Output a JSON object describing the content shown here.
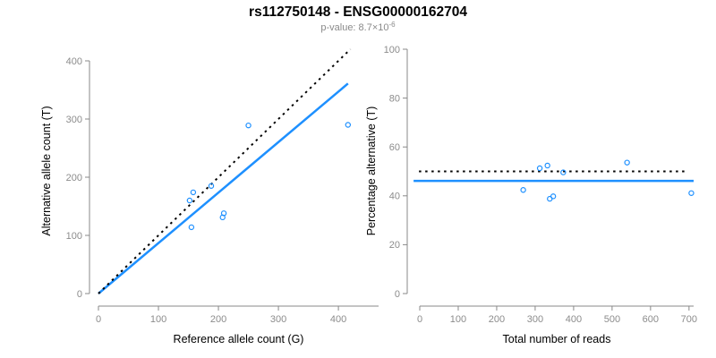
{
  "header": {
    "title": "rs112750148 - ENSG00000162704",
    "p_value_label": "p-value: 8.7×10",
    "p_value_exponent": "-6"
  },
  "colors": {
    "accent_blue": "#1E90FF",
    "line_black": "#000000",
    "axis_gray": "#898989",
    "tick_label_gray": "#8c8c8c",
    "subtitle_gray": "#8a8a8a"
  },
  "chart_data": [
    {
      "id": "allele-counts",
      "type": "scatter",
      "xlabel": "Reference allele count (G)",
      "ylabel": "Alternative allele count (T)",
      "xlim": [
        0,
        467
      ],
      "ylim": [
        0,
        420
      ],
      "xticks": [
        0,
        100,
        200,
        300,
        400
      ],
      "yticks": [
        0,
        100,
        200,
        300,
        400
      ],
      "points": [
        [
          152,
          160
        ],
        [
          155,
          114
        ],
        [
          158,
          174
        ],
        [
          188,
          185
        ],
        [
          207,
          131
        ],
        [
          209,
          138
        ],
        [
          250,
          289
        ],
        [
          416,
          290
        ]
      ],
      "lines": [
        {
          "name": "fit-line",
          "style": "solid",
          "color": "accent",
          "x1": 0,
          "y1": 0,
          "x2": 416,
          "y2": 361
        },
        {
          "name": "identity-line",
          "style": "dotted",
          "color": "black",
          "x1": 0,
          "y1": 0,
          "x2": 420,
          "y2": 420
        }
      ]
    },
    {
      "id": "percentage-alternative",
      "type": "scatter",
      "xlabel": "Total number of reads",
      "ylabel": "Percentage alternative (T)",
      "xlim": [
        0,
        712
      ],
      "ylim": [
        0,
        100
      ],
      "xticks": [
        0,
        100,
        200,
        300,
        400,
        500,
        600,
        700
      ],
      "yticks": [
        0,
        20,
        40,
        60,
        80,
        100
      ],
      "points": [
        [
          269,
          42.4
        ],
        [
          312,
          51.3
        ],
        [
          332,
          52.4
        ],
        [
          338,
          38.8
        ],
        [
          347,
          39.8
        ],
        [
          373,
          49.6
        ],
        [
          539,
          53.6
        ],
        [
          706,
          41.1
        ]
      ],
      "lines": [
        {
          "name": "mean-line",
          "style": "solid",
          "color": "accent",
          "x1": -16,
          "y1": 46.1,
          "x2": 712,
          "y2": 46.1
        },
        {
          "name": "expected-line",
          "style": "dotted",
          "color": "black",
          "x1": -2,
          "y1": 50,
          "x2": 696,
          "y2": 50
        }
      ]
    }
  ]
}
